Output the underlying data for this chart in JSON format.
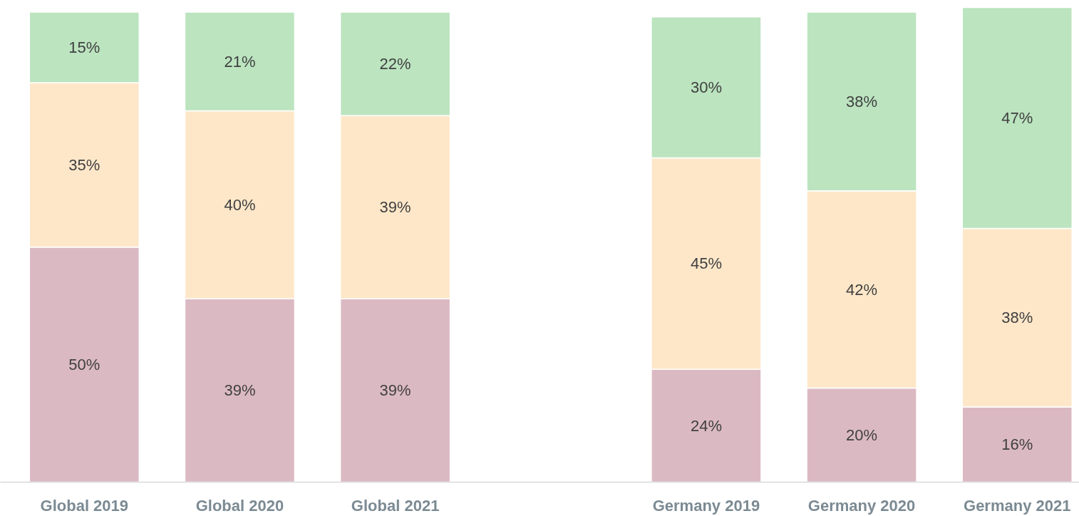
{
  "chart_data": {
    "type": "bar",
    "stacked": true,
    "categories": [
      "Global 2019",
      "Global 2020",
      "Global 2021",
      null,
      "Germany 2019",
      "Germany 2020",
      "Germany 2021"
    ],
    "series": [
      {
        "color": "#dbb9c3",
        "values": [
          50,
          39,
          39,
          null,
          24,
          20,
          16
        ],
        "value_labels": [
          "50%",
          "39%",
          "39%",
          null,
          "24%",
          "20%",
          "16%"
        ]
      },
      {
        "color": "#fee7c9",
        "values": [
          35,
          40,
          39,
          null,
          45,
          42,
          38
        ],
        "value_labels": [
          "35%",
          "40%",
          "39%",
          null,
          "45%",
          "42%",
          "38%"
        ]
      },
      {
        "color": "#bbe4bf",
        "values": [
          15,
          21,
          22,
          null,
          30,
          38,
          47
        ],
        "value_labels": [
          "15%",
          "21%",
          "22%",
          null,
          "30%",
          "38%",
          "47%"
        ]
      }
    ]
  }
}
